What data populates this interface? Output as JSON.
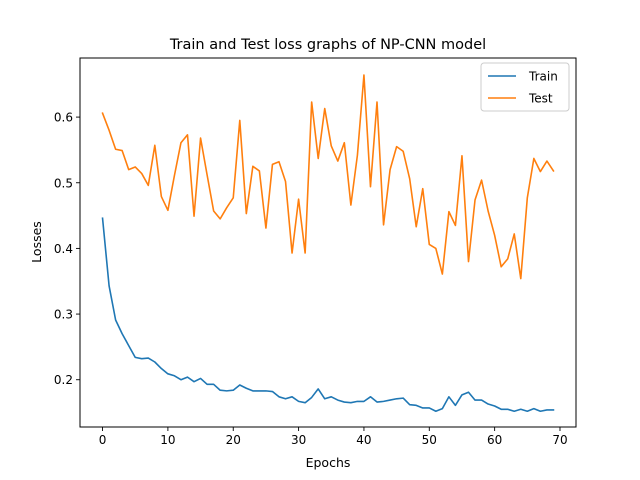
{
  "chart_data": {
    "type": "line",
    "title": "Train and Test loss graphs of NP-CNN model",
    "xlabel": "Epochs",
    "ylabel": "Losses",
    "xlim": [
      -3.45,
      72.45
    ],
    "ylim": [
      0.128,
      0.69
    ],
    "xticks": [
      0,
      10,
      20,
      30,
      40,
      50,
      60,
      70
    ],
    "xtick_labels": [
      "0",
      "10",
      "20",
      "30",
      "40",
      "50",
      "60",
      "70"
    ],
    "yticks": [
      0.2,
      0.3,
      0.4,
      0.5,
      0.6
    ],
    "ytick_labels": [
      "0.2",
      "0.3",
      "0.4",
      "0.5",
      "0.6"
    ],
    "grid": false,
    "legend_position": "top-right",
    "x": [
      0,
      1,
      2,
      3,
      4,
      5,
      6,
      7,
      8,
      9,
      10,
      11,
      12,
      13,
      14,
      15,
      16,
      17,
      18,
      19,
      20,
      21,
      22,
      23,
      24,
      25,
      26,
      27,
      28,
      29,
      30,
      31,
      32,
      33,
      34,
      35,
      36,
      37,
      38,
      39,
      40,
      41,
      42,
      43,
      44,
      45,
      46,
      47,
      48,
      49,
      50,
      51,
      52,
      53,
      54,
      55,
      56,
      57,
      58,
      59,
      60,
      61,
      62,
      63,
      64,
      65,
      66,
      67,
      68,
      69
    ],
    "series": [
      {
        "name": "Train",
        "color": "#1f77b4",
        "values": [
          0.446,
          0.343,
          0.291,
          0.27,
          0.252,
          0.234,
          0.232,
          0.233,
          0.227,
          0.217,
          0.209,
          0.206,
          0.2,
          0.204,
          0.197,
          0.202,
          0.193,
          0.193,
          0.184,
          0.183,
          0.184,
          0.192,
          0.187,
          0.183,
          0.183,
          0.183,
          0.182,
          0.174,
          0.171,
          0.174,
          0.167,
          0.165,
          0.173,
          0.186,
          0.171,
          0.174,
          0.169,
          0.166,
          0.165,
          0.167,
          0.167,
          0.174,
          0.166,
          0.167,
          0.169,
          0.171,
          0.172,
          0.162,
          0.161,
          0.157,
          0.157,
          0.152,
          0.156,
          0.174,
          0.161,
          0.177,
          0.181,
          0.169,
          0.169,
          0.163,
          0.16,
          0.155,
          0.155,
          0.152,
          0.155,
          0.152,
          0.156,
          0.152,
          0.154,
          0.154
        ]
      },
      {
        "name": "Test",
        "color": "#ff7f0e",
        "values": [
          0.606,
          0.58,
          0.551,
          0.549,
          0.52,
          0.524,
          0.514,
          0.496,
          0.557,
          0.479,
          0.458,
          0.511,
          0.561,
          0.573,
          0.449,
          0.568,
          0.512,
          0.457,
          0.445,
          0.462,
          0.477,
          0.595,
          0.453,
          0.525,
          0.518,
          0.431,
          0.528,
          0.532,
          0.502,
          0.393,
          0.475,
          0.393,
          0.623,
          0.537,
          0.613,
          0.556,
          0.533,
          0.561,
          0.466,
          0.542,
          0.664,
          0.494,
          0.623,
          0.436,
          0.52,
          0.555,
          0.548,
          0.506,
          0.433,
          0.491,
          0.406,
          0.4,
          0.361,
          0.456,
          0.435,
          0.541,
          0.38,
          0.474,
          0.504,
          0.457,
          0.42,
          0.372,
          0.384,
          0.422,
          0.354,
          0.477,
          0.537,
          0.517,
          0.533,
          0.518
        ]
      }
    ]
  }
}
